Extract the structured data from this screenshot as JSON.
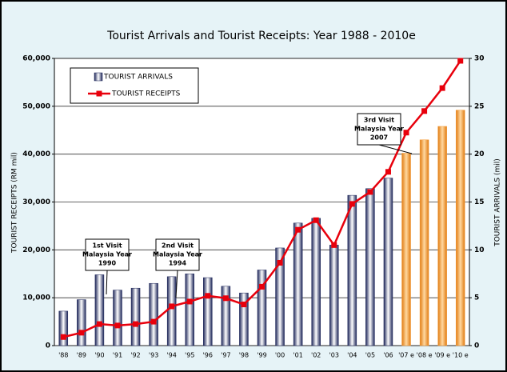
{
  "chart_data": {
    "type": "bar_line",
    "title": "Tourist Arrivals and Tourist Receipts: Year 1988 - 2010e",
    "ylabel": "TOURIST RECEIPTS (RM mil)",
    "y2label": "TOURIST ARRIVALS (mil)",
    "categories": [
      "'88",
      "'89",
      "'90",
      "'91",
      "'92",
      "'93",
      "'94",
      "'95",
      "'96",
      "'97",
      "'98",
      "'99",
      "'00",
      "'01",
      "'02",
      "'03",
      "'04",
      "'05",
      "'06",
      "'07 e",
      "'08 e",
      "'09 e",
      "'10 e"
    ],
    "series": [
      {
        "name": "TOURIST ARRIVALS",
        "type": "bar",
        "axis": "y2",
        "color": "#1c2558",
        "estimate_color": "#f5a040",
        "values": [
          3.6,
          4.8,
          7.4,
          5.8,
          6.0,
          6.5,
          7.2,
          7.5,
          7.1,
          6.2,
          5.5,
          7.9,
          10.2,
          12.8,
          13.3,
          10.5,
          15.7,
          16.4,
          17.5,
          20.1,
          21.5,
          22.9,
          24.6
        ]
      },
      {
        "name": "TOURIST RECEIPTS",
        "type": "line",
        "color": "#e8000c",
        "values": [
          1800,
          2700,
          4500,
          4200,
          4500,
          5000,
          8200,
          9200,
          10400,
          9900,
          8600,
          12300,
          17300,
          24200,
          26200,
          21000,
          29600,
          32100,
          36300,
          44500,
          49000,
          53800,
          59500
        ]
      }
    ],
    "ylim": [
      0,
      60000
    ],
    "yticks": [
      0,
      {
        "value": 10000,
        "label": "10,000"
      },
      {
        "value": 20000,
        "label": "20,000"
      },
      {
        "value": 30000,
        "label": "30,000"
      },
      {
        "value": 40000,
        "label": "40,000"
      },
      {
        "value": 50000,
        "label": "50,000"
      },
      {
        "value": 60000,
        "label": "60,000"
      }
    ],
    "y2lim": [
      0,
      30
    ],
    "y2ticks": [
      0,
      5,
      10,
      15,
      20,
      25,
      30
    ],
    "grid": true,
    "legend": "upper left",
    "annotations": [
      {
        "text": [
          "1st Visit",
          "Malaysia Year",
          "1990"
        ]
      },
      {
        "text": [
          "2nd Visit",
          "Malaysia Year",
          "1994"
        ]
      },
      {
        "text": [
          "3rd Visit",
          "Malaysia Year",
          "2007"
        ]
      }
    ]
  }
}
